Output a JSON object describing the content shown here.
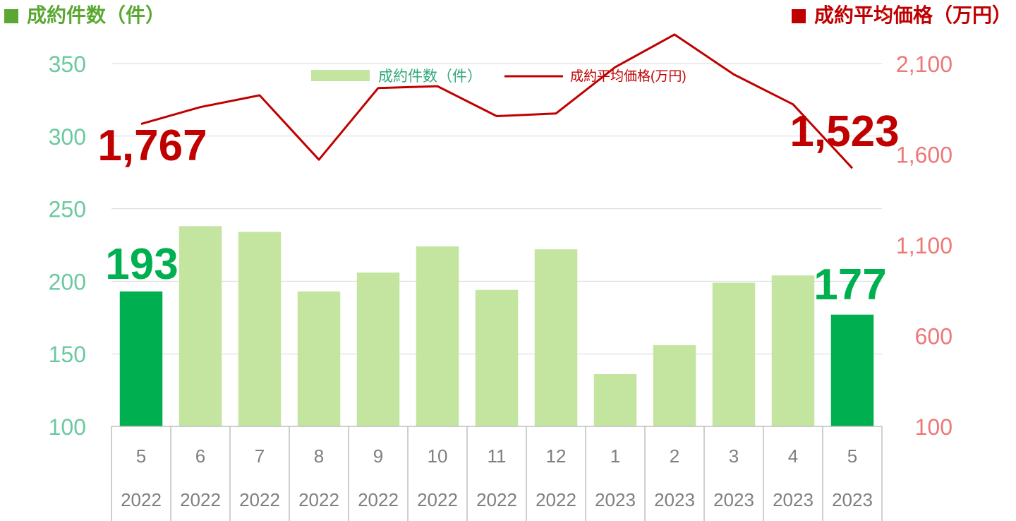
{
  "titles": {
    "left": "成約件数（件）",
    "right": "成約平均価格（万円）"
  },
  "colors": {
    "bar_highlight": "#00b050",
    "bar_normal": "#c3e5a0",
    "line": "#c00000",
    "left_axis_text": "#6bc9a0",
    "right_axis_text": "#ee7777",
    "left_title": "#5aa832",
    "right_title": "#c00000",
    "callout_count": "#00b050",
    "callout_price": "#c00000"
  },
  "chart_data": {
    "type": "bar",
    "categories": [
      "5",
      "6",
      "7",
      "8",
      "9",
      "10",
      "11",
      "12",
      "1",
      "2",
      "3",
      "4",
      "5"
    ],
    "years": [
      "2022",
      "2022",
      "2022",
      "2022",
      "2022",
      "2022",
      "2022",
      "2022",
      "2023",
      "2023",
      "2023",
      "2023",
      "2023"
    ],
    "series": [
      {
        "name": "成約件数（件）",
        "kind": "bar",
        "axis": "left",
        "values": [
          193,
          238,
          234,
          193,
          206,
          224,
          194,
          222,
          136,
          156,
          199,
          204,
          177
        ],
        "highlight": [
          true,
          false,
          false,
          false,
          false,
          false,
          false,
          false,
          false,
          false,
          false,
          false,
          true
        ]
      },
      {
        "name": "成約平均価格(万円)",
        "kind": "line",
        "axis": "right",
        "values": [
          1767,
          1860,
          1925,
          1570,
          1965,
          1975,
          1810,
          1825,
          2080,
          2260,
          2040,
          1875,
          1523
        ]
      }
    ],
    "y_left": {
      "min": 100,
      "max": 350,
      "ticks": [
        100,
        150,
        200,
        250,
        300,
        350
      ]
    },
    "y_right": {
      "min": 100,
      "max": 2100,
      "ticks": [
        100,
        600,
        1100,
        1600,
        2100
      ]
    },
    "annotations": {
      "price_first": "1,767",
      "price_last": "1,523",
      "count_first": "193",
      "count_last": "177"
    },
    "legend_position": "top-center",
    "grid": true
  }
}
